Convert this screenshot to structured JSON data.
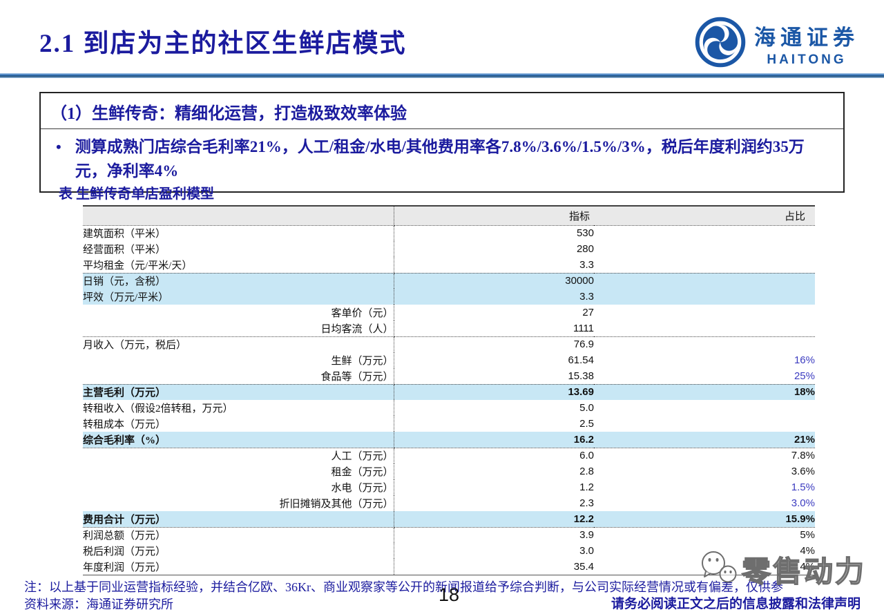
{
  "header": {
    "title": "2.1 到店为主的社区生鲜店模式",
    "logo": {
      "cn": "海通证券",
      "en": "HAITONG"
    }
  },
  "infobox": {
    "heading": "（1）生鲜传奇：精细化运营，打造极致效率体验",
    "bullet_marker": "•",
    "bullet": "测算成熟门店综合毛利率21%，人工/租金/水电/其他费用率各7.8%/3.6%/1.5%/3%，税后年度利润约35万元，净利率4%"
  },
  "table": {
    "caption": "表  生鲜传奇单店盈利模型",
    "columns": {
      "metric": "指标",
      "ratio": "占比"
    },
    "rows": [
      {
        "label": "建筑面积（平米）",
        "value": "530",
        "ratio": "",
        "align": "left"
      },
      {
        "label": "经营面积（平米）",
        "value": "280",
        "ratio": "",
        "align": "left"
      },
      {
        "label": "平均租金（元/平米/天）",
        "value": "3.3",
        "ratio": "",
        "align": "left",
        "dotted": true
      },
      {
        "label": "日销（元，含税）",
        "value": "30000",
        "ratio": "",
        "align": "left",
        "highlight": true
      },
      {
        "label": "坪效（万元/平米）",
        "value": "3.3",
        "ratio": "",
        "align": "left",
        "highlight": true
      },
      {
        "label": "客单价（元）",
        "value": "27",
        "ratio": "",
        "align": "right"
      },
      {
        "label": "日均客流（人）",
        "value": "1111",
        "ratio": "",
        "align": "right",
        "dotted": true
      },
      {
        "label": "月收入（万元，税后）",
        "value": "76.9",
        "ratio": "",
        "align": "left"
      },
      {
        "label": "生鲜（万元）",
        "value": "61.54",
        "ratio": "16%",
        "align": "right",
        "ratioBlue": true
      },
      {
        "label": "食品等（万元）",
        "value": "15.38",
        "ratio": "25%",
        "align": "right",
        "ratioBlue": true,
        "dotted": true
      },
      {
        "label": "主营毛利（万元）",
        "value": "13.69",
        "ratio": "18%",
        "align": "left",
        "highlight": true,
        "bold": true
      },
      {
        "label": "转租收入（假设2倍转租，万元）",
        "value": "5.0",
        "ratio": "",
        "align": "left"
      },
      {
        "label": "转租成本（万元）",
        "value": "2.5",
        "ratio": "",
        "align": "left"
      },
      {
        "label": "综合毛利率（%）",
        "value": "16.2",
        "ratio": "21%",
        "align": "left",
        "highlight": true,
        "bold": true,
        "dotted": true
      },
      {
        "label": "人工（万元）",
        "value": "6.0",
        "ratio": "7.8%",
        "align": "right"
      },
      {
        "label": "租金（万元）",
        "value": "2.8",
        "ratio": "3.6%",
        "align": "right"
      },
      {
        "label": "水电（万元）",
        "value": "1.2",
        "ratio": "1.5%",
        "align": "right",
        "ratioBlue": true
      },
      {
        "label": "折旧摊销及其他（万元）",
        "value": "2.3",
        "ratio": "3.0%",
        "align": "right",
        "ratioBlue": true
      },
      {
        "label": "费用合计（万元）",
        "value": "12.2",
        "ratio": "15.9%",
        "align": "left",
        "highlight": true,
        "bold": true,
        "dotted": true
      },
      {
        "label": "利润总额（万元）",
        "value": "3.9",
        "ratio": "5%",
        "align": "left"
      },
      {
        "label": "税后利润（万元）",
        "value": "3.0",
        "ratio": "4%",
        "align": "left"
      },
      {
        "label": "年度利润（万元）",
        "value": "35.4",
        "ratio": "4%",
        "align": "left"
      }
    ]
  },
  "footer": {
    "note": "注：以上基于同业运营指标经验，并结合亿欧、36Kr、商业观察家等公开的新闻报道给予综合判断，与公司实际经营情况或有偏差，仅供参",
    "source": "资料来源：海通证券研究所",
    "page": "18",
    "disclaimer": "请务必阅读正文之后的信息披露和法律声明"
  },
  "watermark": {
    "text": "零售动力"
  },
  "colors": {
    "heading_blue": "#1b1b9e",
    "logo_blue": "#1b57a6",
    "highlight_blue": "#c8e7f5",
    "ratio_blue": "#3b3bc0",
    "header_gray": "#e9e9e9",
    "rule_blue": "#2d6db5"
  }
}
